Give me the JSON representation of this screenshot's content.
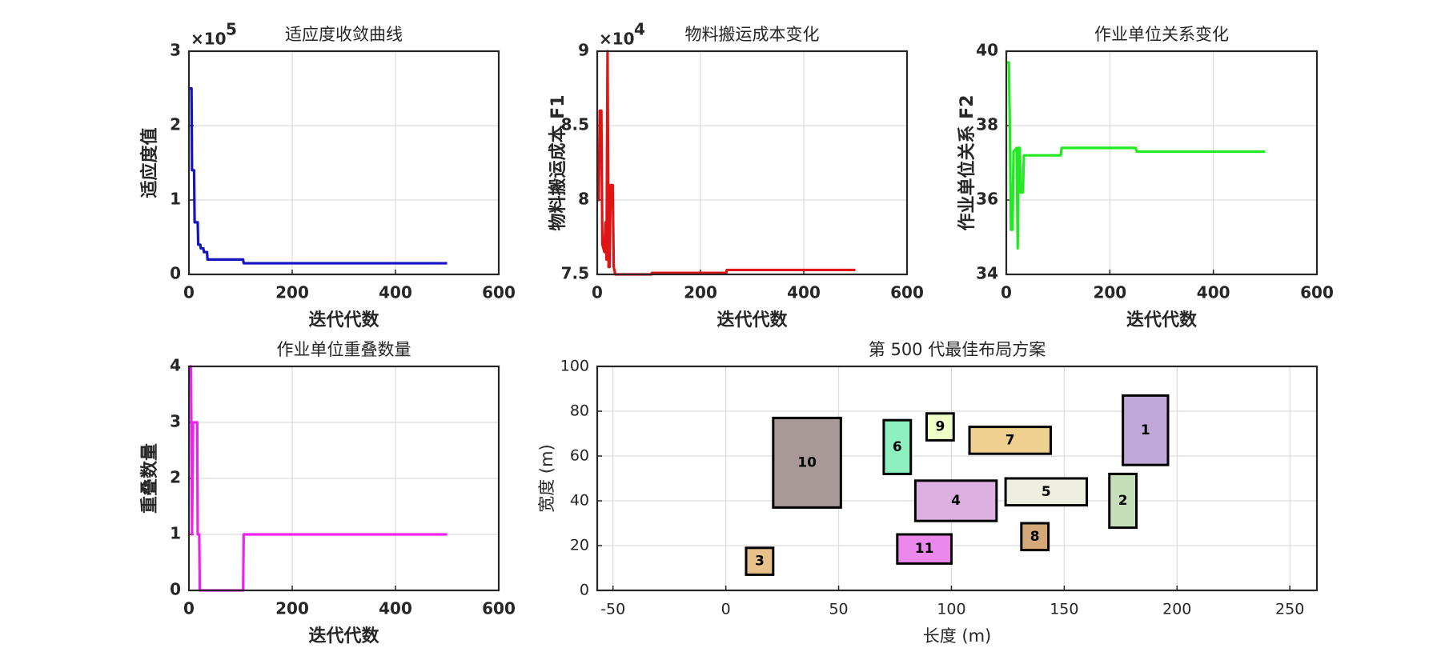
{
  "chart_data": [
    {
      "type": "line",
      "title": "适应度收敛曲线",
      "xlabel": "迭代代数",
      "ylabel": "适应度值",
      "y_multiplier_base": "×10",
      "y_multiplier_exponent": "5",
      "color": "#1414c0",
      "x": [
        1,
        5,
        6,
        10,
        11,
        17,
        18,
        22,
        23,
        28,
        29,
        35,
        36,
        105,
        106,
        500
      ],
      "values": [
        2.5,
        2.5,
        1.4,
        1.4,
        0.7,
        0.7,
        0.4,
        0.4,
        0.35,
        0.35,
        0.3,
        0.3,
        0.2,
        0.2,
        0.15,
        0.15
      ],
      "xlim": [
        0,
        600
      ],
      "xticks": [
        0,
        200,
        400,
        600
      ],
      "ylim": [
        0,
        3
      ],
      "yticks": [
        0,
        1,
        2,
        3
      ],
      "grid": true
    },
    {
      "type": "line",
      "title": "物料搬运成本变化",
      "xlabel": "迭代代数",
      "ylabel": "物料搬运成本 F1",
      "y_multiplier_base": "×10",
      "y_multiplier_exponent": "4",
      "color": "#e01414",
      "x": [
        1,
        3,
        5,
        8,
        10,
        14,
        16,
        18,
        20,
        22,
        24,
        26,
        30,
        32,
        35,
        105,
        106,
        250,
        251,
        500
      ],
      "values": [
        8.15,
        8.0,
        8.6,
        8.6,
        7.7,
        7.65,
        7.85,
        7.6,
        9.0,
        7.55,
        7.55,
        8.1,
        8.1,
        7.55,
        7.5,
        7.5,
        7.51,
        7.51,
        7.53,
        7.53
      ],
      "xlim": [
        0,
        600
      ],
      "xticks": [
        0,
        200,
        400,
        600
      ],
      "ylim": [
        7.5,
        9
      ],
      "yticks": [
        7.5,
        8,
        8.5,
        9
      ],
      "grid": true
    },
    {
      "type": "line",
      "title": "作业单位关系变化",
      "xlabel": "迭代代数",
      "ylabel": "作业单位关系 F2",
      "color": "#22ea22",
      "x": [
        1,
        5,
        7,
        9,
        12,
        14,
        20,
        22,
        24,
        26,
        28,
        32,
        34,
        105,
        107,
        250,
        252,
        500
      ],
      "values": [
        39.7,
        39.7,
        37.8,
        35.2,
        35.2,
        37.3,
        37.4,
        34.7,
        37.4,
        37.4,
        36.2,
        36.2,
        37.2,
        37.2,
        37.4,
        37.4,
        37.3,
        37.3
      ],
      "xlim": [
        0,
        600
      ],
      "xticks": [
        0,
        200,
        400,
        600
      ],
      "ylim": [
        34,
        40
      ],
      "yticks": [
        34,
        36,
        38,
        40
      ],
      "grid": true
    },
    {
      "type": "line",
      "title": "作业单位重叠数量",
      "xlabel": "迭代代数",
      "ylabel": "重叠数量",
      "color": "#ee22ee",
      "x": [
        1,
        4,
        6,
        8,
        16,
        17,
        20,
        21,
        105,
        106,
        500
      ],
      "values": [
        4,
        4,
        1,
        3,
        3,
        1,
        1,
        0,
        0,
        1,
        1
      ],
      "xlim": [
        0,
        600
      ],
      "xticks": [
        0,
        200,
        400,
        600
      ],
      "ylim": [
        0,
        4
      ],
      "yticks": [
        0,
        1,
        2,
        3,
        4
      ],
      "grid": true
    },
    {
      "type": "layout",
      "title": "第 500 代最佳布局方案",
      "xlabel": "长度 (m)",
      "ylabel": "宽度 (m)",
      "blocks": [
        {
          "label": "1",
          "x": [
            176,
            196
          ],
          "y": [
            56,
            87
          ],
          "color": "#bfa8d8"
        },
        {
          "label": "2",
          "x": [
            170,
            182
          ],
          "y": [
            28,
            52
          ],
          "color": "#c5dfb8"
        },
        {
          "label": "3",
          "x": [
            9,
            21
          ],
          "y": [
            7,
            19
          ],
          "color": "#e8c08a"
        },
        {
          "label": "4",
          "x": [
            84,
            120
          ],
          "y": [
            31,
            49
          ],
          "color": "#dcb0e0"
        },
        {
          "label": "5",
          "x": [
            124,
            160
          ],
          "y": [
            38,
            50
          ],
          "color": "#efefe0"
        },
        {
          "label": "6",
          "x": [
            70,
            82
          ],
          "y": [
            52,
            76
          ],
          "color": "#8ef0c0"
        },
        {
          "label": "7",
          "x": [
            108,
            144
          ],
          "y": [
            61,
            73
          ],
          "color": "#f0d090"
        },
        {
          "label": "8",
          "x": [
            131,
            143
          ],
          "y": [
            18,
            30
          ],
          "color": "#d4a878"
        },
        {
          "label": "9",
          "x": [
            89,
            101
          ],
          "y": [
            67,
            79
          ],
          "color": "#eeffc8"
        },
        {
          "label": "10",
          "x": [
            21,
            51
          ],
          "y": [
            37,
            77
          ],
          "color": "#a89898"
        },
        {
          "label": "11",
          "x": [
            76,
            100
          ],
          "y": [
            12,
            25
          ],
          "color": "#ec88ec"
        }
      ],
      "xlim": [
        -57,
        262
      ],
      "xticks": [
        -50,
        0,
        50,
        100,
        150,
        200,
        250
      ],
      "ylim": [
        0,
        100
      ],
      "yticks": [
        0,
        20,
        40,
        60,
        80,
        100
      ],
      "grid": true
    }
  ]
}
